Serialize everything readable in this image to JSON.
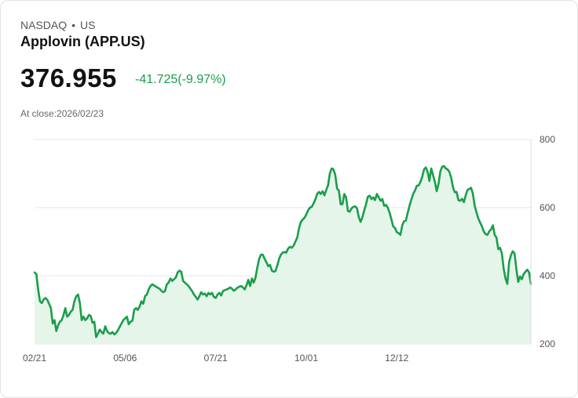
{
  "header": {
    "exchange": "NASDAQ",
    "separator": "•",
    "region": "US",
    "name": "Applovin (APP.US)",
    "price": "376.955",
    "change": "-41.725(-9.97%)",
    "close_label": "At close:2026/02/23"
  },
  "colors": {
    "line": "#1a9e4b",
    "fill": "#e6f5ea",
    "change": "#1a9e4b"
  },
  "chart_data": {
    "type": "area",
    "title": "",
    "xlabel": "",
    "ylabel": "",
    "ylim": [
      200,
      800
    ],
    "yticks": [
      200,
      400,
      600,
      800
    ],
    "x_tick_labels": [
      "02/21",
      "05/06",
      "07/21",
      "10/01",
      "12/12"
    ],
    "x_tick_indices": [
      0,
      50,
      100,
      150,
      200
    ],
    "grid": true,
    "series": [
      {
        "name": "APP.US",
        "values": [
          410,
          405,
          360,
          325,
          320,
          330,
          335,
          330,
          318,
          305,
          260,
          270,
          238,
          255,
          265,
          270,
          285,
          305,
          280,
          285,
          295,
          300,
          325,
          340,
          345,
          320,
          270,
          280,
          270,
          275,
          285,
          282,
          262,
          265,
          220,
          230,
          242,
          235,
          230,
          252,
          238,
          232,
          230,
          235,
          228,
          232,
          240,
          250,
          260,
          270,
          275,
          280,
          258,
          265,
          268,
          300,
          305,
          300,
          310,
          325,
          318,
          340,
          345,
          360,
          370,
          375,
          372,
          368,
          365,
          362,
          356,
          352,
          355,
          375,
          380,
          392,
          385,
          390,
          395,
          410,
          415,
          412,
          385,
          380,
          375,
          370,
          362,
          355,
          345,
          338,
          330,
          340,
          352,
          345,
          348,
          340,
          350,
          345,
          350,
          338,
          335,
          345,
          350,
          342,
          355,
          358,
          360,
          362,
          366,
          362,
          356,
          360,
          365,
          368,
          370,
          366,
          360,
          372,
          388,
          370,
          392,
          380,
          395,
          425,
          450,
          462,
          462,
          450,
          440,
          428,
          432,
          415,
          412,
          414,
          430,
          450,
          462,
          468,
          470,
          468,
          480,
          485,
          482,
          488,
          500,
          512,
          540,
          558,
          565,
          570,
          580,
          592,
          600,
          602,
          612,
          624,
          640,
          646,
          640,
          648,
          636,
          652,
          665,
          700,
          715,
          712,
          696,
          656,
          650,
          610,
          610,
          640,
          630,
          590,
          588,
          598,
          602,
          604,
          598,
          572,
          558,
          572,
          592,
          610,
          632,
          635,
          625,
          630,
          622,
          640,
          630,
          620,
          625,
          605,
          608,
          600,
          585,
          565,
          545,
          540,
          528,
          525,
          520,
          548,
          560,
          562,
          585,
          606,
          624,
          640,
          650,
          664,
          665,
          675,
          690,
          712,
          718,
          705,
          678,
          715,
          696,
          675,
          648,
          670,
          706,
          720,
          722,
          715,
          712,
          705,
          688,
          660,
          645,
          646,
          622,
          620,
          626,
          616,
          636,
          652,
          655,
          658,
          640,
          605,
          586,
          568,
          556,
          545,
          530,
          522,
          520,
          530,
          536,
          548,
          520,
          512,
          478,
          482,
          465,
          420,
          392,
          376,
          440,
          460,
          472,
          466,
          420,
          382,
          398,
          390,
          405,
          412,
          418,
          410,
          376
        ]
      }
    ]
  }
}
